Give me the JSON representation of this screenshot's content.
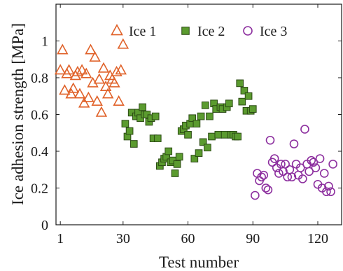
{
  "chart_data": {
    "type": "scatter",
    "xlabel": "Test number",
    "ylabel": "Ice adhesion strength [MPa]",
    "xlim": [
      -1,
      131
    ],
    "ylim": [
      0,
      1.2
    ],
    "xticks": [
      1,
      30,
      60,
      90,
      120
    ],
    "yticks": [
      0,
      0.2,
      0.4,
      0.6,
      0.8,
      1
    ],
    "grid": false,
    "legend": "top-center",
    "series": [
      {
        "name": "Ice 1",
        "marker": "triangle",
        "color": "#E0622A",
        "filled": false,
        "x": [
          1,
          2,
          3,
          4,
          5,
          6,
          7,
          8,
          9,
          10,
          11,
          12,
          13,
          14,
          15,
          16,
          17,
          18,
          19,
          20,
          21,
          22,
          23,
          24,
          25,
          26,
          27,
          28,
          29,
          30
        ],
        "y": [
          0.84,
          0.95,
          0.73,
          0.82,
          0.84,
          0.71,
          0.74,
          0.81,
          0.83,
          0.71,
          0.84,
          0.66,
          0.82,
          0.69,
          0.95,
          0.77,
          0.91,
          0.67,
          0.79,
          0.61,
          0.85,
          0.75,
          0.71,
          0.81,
          0.79,
          0.77,
          0.83,
          0.67,
          0.84,
          0.98
        ]
      },
      {
        "name": "Ice 2",
        "marker": "square",
        "color": "#5B9B2F",
        "filled": true,
        "x": [
          31,
          32,
          33,
          34,
          35,
          36,
          37,
          38,
          39,
          40,
          41,
          42,
          43,
          44,
          45,
          46,
          47,
          48,
          49,
          50,
          51,
          52,
          53,
          54,
          55,
          56,
          57,
          58,
          59,
          60,
          61,
          62,
          63,
          64,
          65,
          66,
          67,
          68,
          69,
          70,
          71,
          72,
          73,
          74,
          75,
          76,
          77,
          78,
          79,
          80,
          81,
          82,
          83,
          84,
          85,
          86,
          87,
          88,
          89,
          90
        ],
        "y": [
          0.55,
          0.48,
          0.51,
          0.61,
          0.44,
          0.59,
          0.61,
          0.58,
          0.64,
          0.6,
          0.6,
          0.56,
          0.58,
          0.47,
          0.59,
          0.47,
          0.32,
          0.34,
          0.36,
          0.37,
          0.4,
          0.34,
          0.35,
          0.28,
          0.33,
          0.37,
          0.51,
          0.52,
          0.54,
          0.49,
          0.55,
          0.58,
          0.36,
          0.55,
          0.39,
          0.59,
          0.45,
          0.65,
          0.42,
          0.59,
          0.48,
          0.66,
          0.63,
          0.49,
          0.64,
          0.63,
          0.49,
          0.64,
          0.66,
          0.49,
          0.49,
          0.48,
          0.48,
          0.77,
          0.67,
          0.73,
          0.62,
          0.7,
          0.62,
          0.63
        ]
      },
      {
        "name": "Ice 3",
        "marker": "circle",
        "color": "#8C2E9E",
        "filled": false,
        "x": [
          91,
          92,
          93,
          94,
          95,
          96,
          97,
          98,
          99,
          100,
          101,
          102,
          103,
          104,
          105,
          106,
          107,
          108,
          109,
          110,
          111,
          112,
          113,
          114,
          115,
          116,
          117,
          118,
          119,
          120,
          121,
          122,
          123,
          124,
          125,
          126,
          127
        ],
        "y": [
          0.16,
          0.28,
          0.24,
          0.26,
          0.27,
          0.2,
          0.19,
          0.46,
          0.34,
          0.36,
          0.31,
          0.28,
          0.33,
          0.29,
          0.33,
          0.26,
          0.3,
          0.26,
          0.44,
          0.33,
          0.27,
          0.31,
          0.25,
          0.52,
          0.33,
          0.29,
          0.35,
          0.34,
          0.31,
          0.22,
          0.36,
          0.2,
          0.28,
          0.18,
          0.21,
          0.18,
          0.33
        ]
      }
    ]
  }
}
